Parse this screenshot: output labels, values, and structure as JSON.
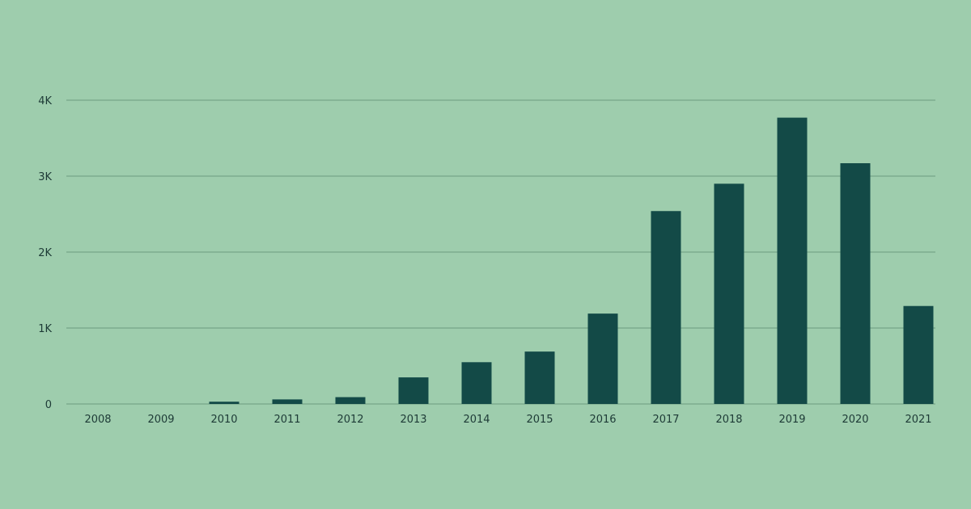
{
  "colors": {
    "background": "#9ecdad",
    "bar": "#134a47",
    "gridline": "#6c9c80",
    "text": "#1d3a36"
  },
  "chart_data": {
    "type": "bar",
    "title": "",
    "xlabel": "",
    "ylabel": "",
    "categories": [
      "2008",
      "2009",
      "2010",
      "2011",
      "2012",
      "2013",
      "2014",
      "2015",
      "2016",
      "2017",
      "2018",
      "2019",
      "2020",
      "2021"
    ],
    "values": [
      0,
      0,
      30,
      60,
      90,
      350,
      550,
      690,
      1190,
      2540,
      2900,
      3770,
      3170,
      1290
    ],
    "ylim": [
      0,
      4000
    ],
    "yticks": [
      0,
      1000,
      2000,
      3000,
      4000
    ],
    "ytick_labels": [
      "0",
      "1K",
      "2K",
      "3K",
      "4K"
    ],
    "grid": true,
    "legend": "none"
  }
}
